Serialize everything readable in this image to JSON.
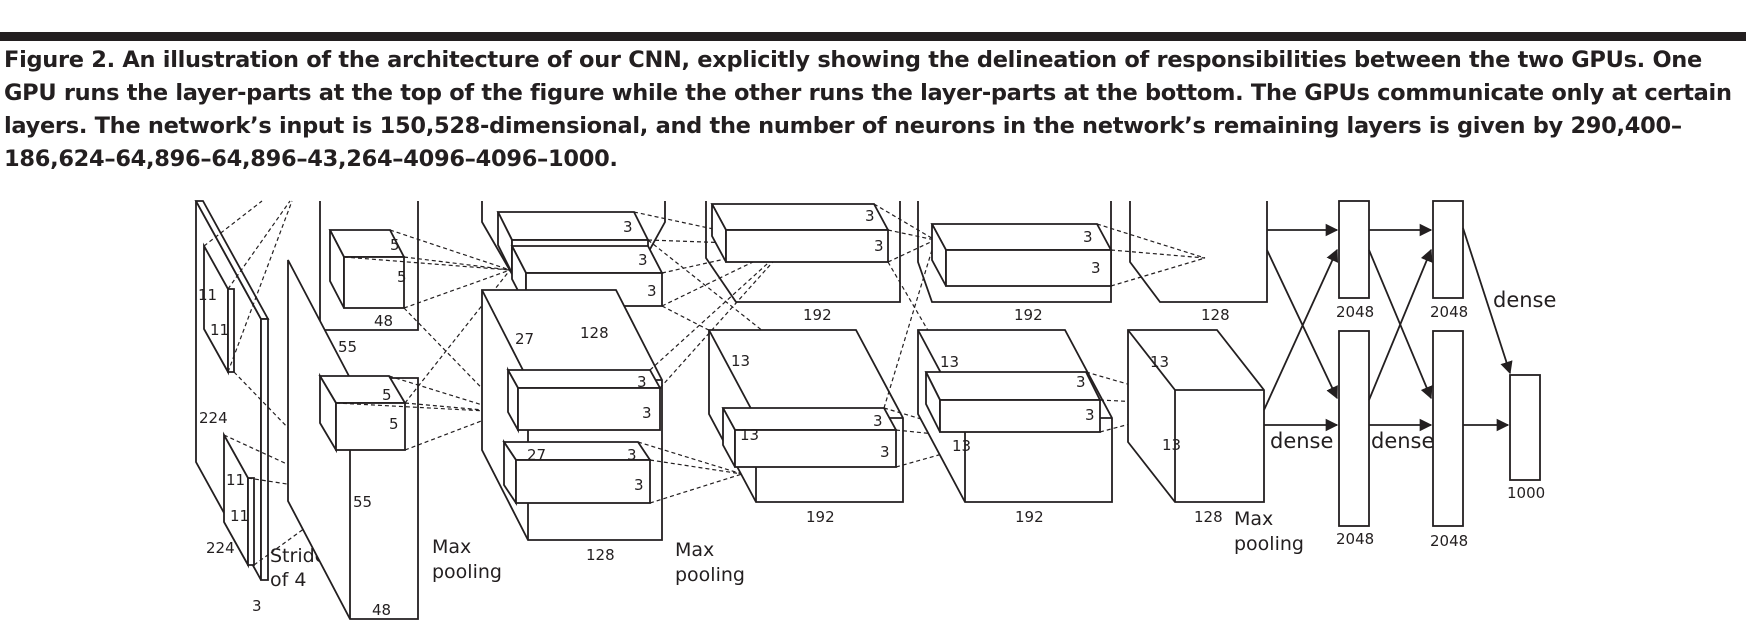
{
  "figure": {
    "caption": "Figure 2. An illustration of the architecture of our CNN, explicitly showing the delineation of responsibilities between the two GPUs. One GPU runs the layer-parts at the top of the figure while the other runs the layer-parts at the bottom. The GPUs communicate only at certain layers. The network’s input is 150,528-dimensional, and the number of neurons in the network’s remaining layers is given by 290,400–186,624–64,896–64,896–43,264–4096–4096–1000."
  },
  "input": {
    "height": "224",
    "width": "224",
    "depth": "3",
    "kernel_h_top": "11",
    "kernel_w_top": "11",
    "kernel_h_bot": "11",
    "kernel_w_bot": "11",
    "stride_line1": "Stride",
    "stride_line2": "of 4"
  },
  "conv1": {
    "size": "55",
    "size_bottom": "55",
    "depth_top": "48",
    "depth_bottom": "48",
    "k_top_a": "5",
    "k_top_b": "5",
    "k_bot_a": "5",
    "k_bot_b": "5",
    "pool_line1": "Max",
    "pool_line2": "pooling"
  },
  "conv2": {
    "size": "27",
    "size_bottom": "27",
    "depth_top": "128",
    "depth_bottom": "128",
    "k_top_a": "3",
    "k_top_b": "3",
    "k_top_c": "3",
    "k_bot_a": "3",
    "k_bot_b": "3",
    "k_bot_c": "3",
    "k_bot_d": "3",
    "pool_line1": "Max",
    "pool_line2": "pooling"
  },
  "conv3": {
    "size_top": "13",
    "size_bottom": "13",
    "depth_top": "192",
    "depth_bottom": "192",
    "k_top_a": "3",
    "k_top_b": "3",
    "k_bot_a": "3",
    "k_bot_b": "3"
  },
  "conv4": {
    "size_top": "13",
    "size_bottom": "13",
    "depth_top": "192",
    "depth_bottom": "192",
    "k_top_a": "3",
    "k_top_b": "3",
    "k_bot_a": "3",
    "k_bot_b": "3"
  },
  "conv5": {
    "size_top": "13",
    "size_bottom": "13",
    "depth_top": "128",
    "depth_bottom": "128",
    "pool_line1": "Max",
    "pool_line2": "pooling"
  },
  "fc": {
    "dense_1": "dense",
    "dense_2": "dense",
    "dense_3": "dense",
    "fc6_top": "2048",
    "fc6_bottom": "2048",
    "fc7_top": "2048",
    "fc7_bottom": "2048",
    "output": "1000"
  }
}
